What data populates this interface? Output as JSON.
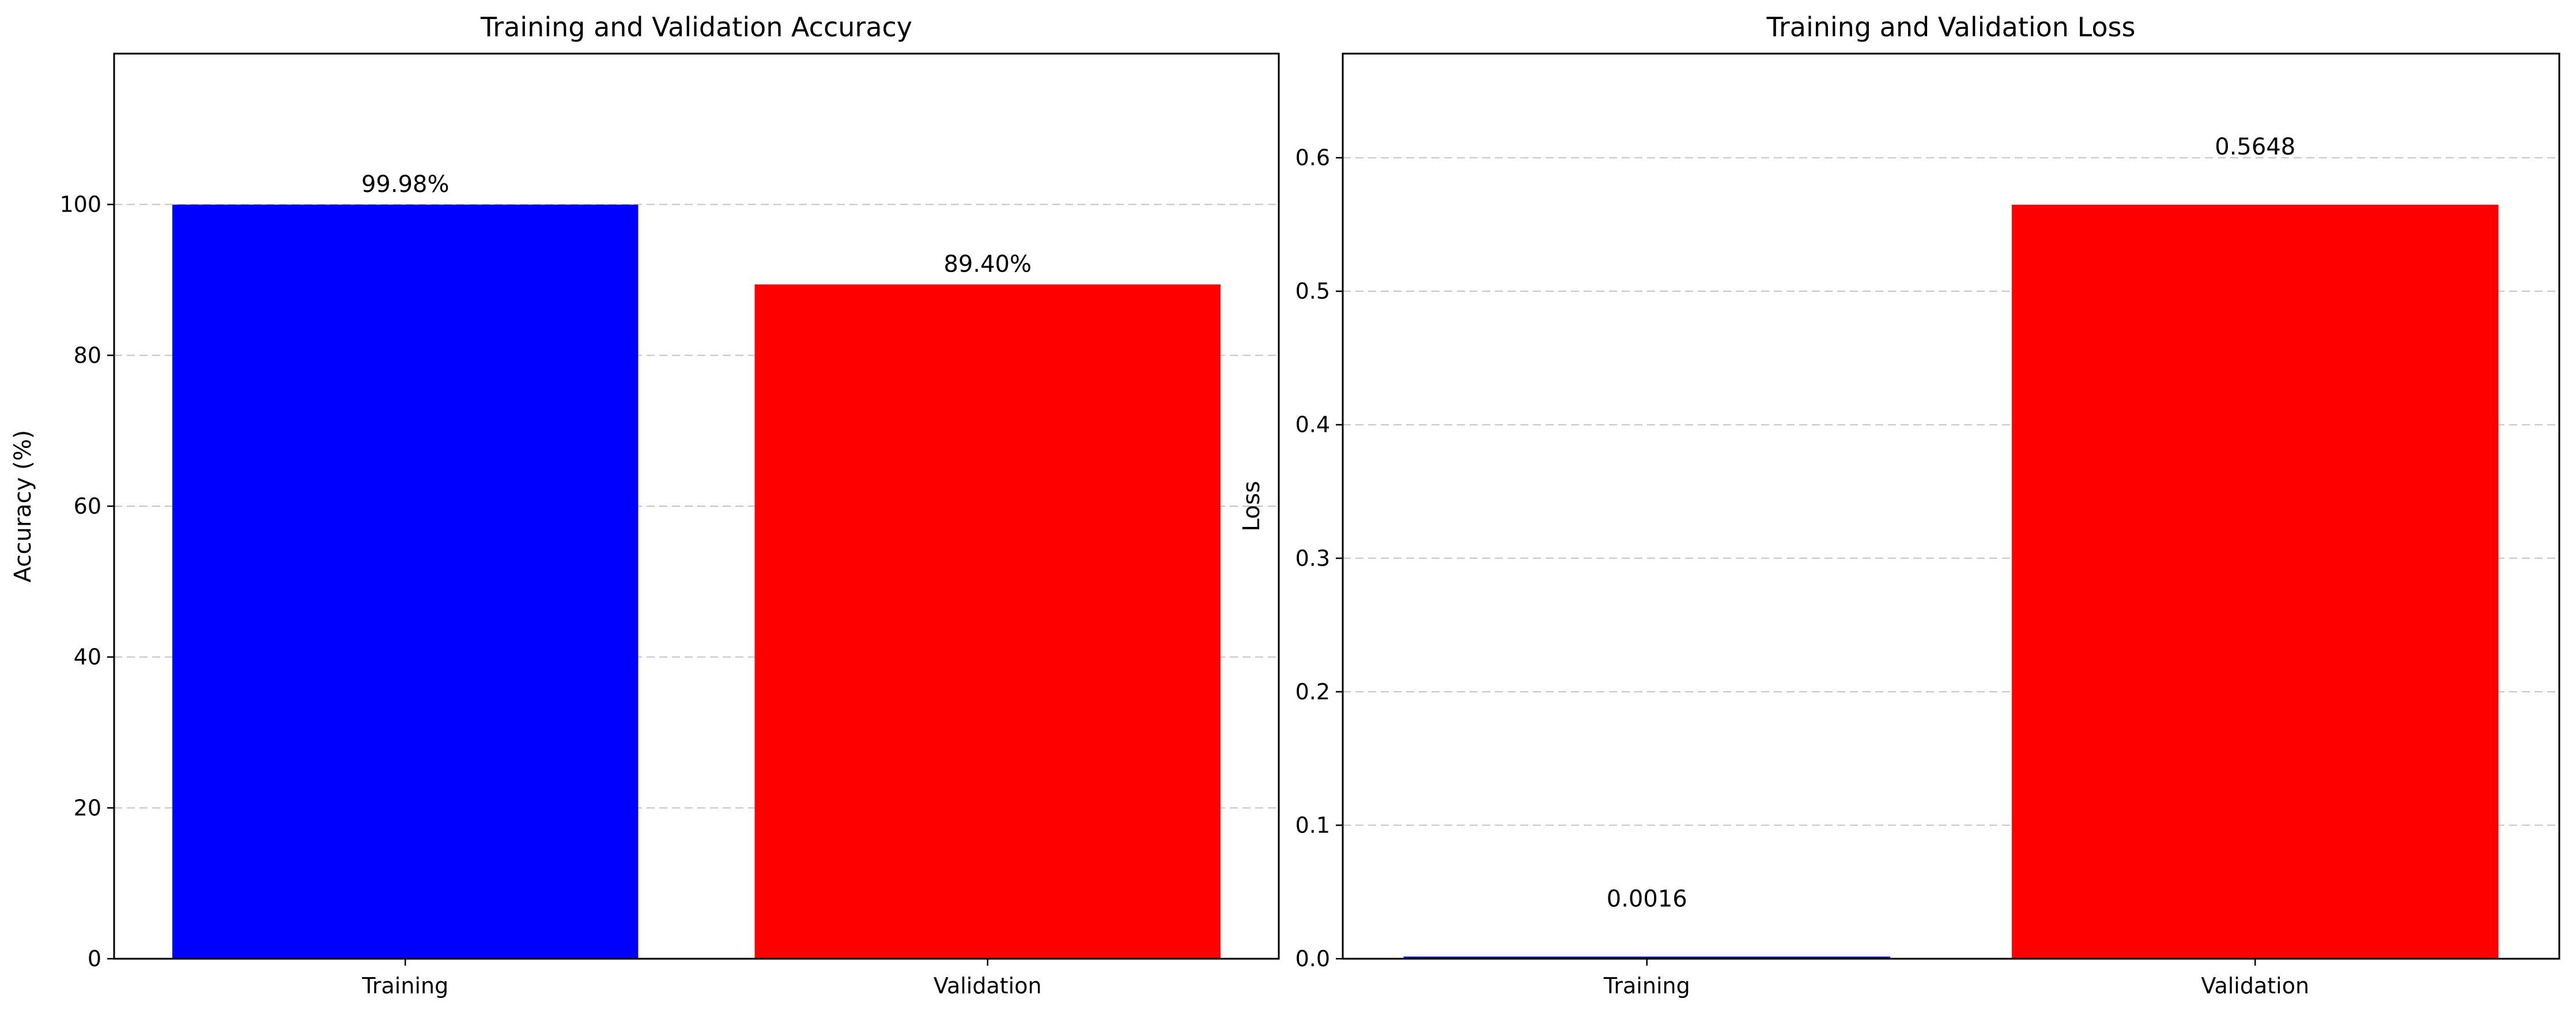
{
  "chart_data": [
    {
      "type": "bar",
      "title": "Training and Validation Accuracy",
      "xlabel": "",
      "ylabel": "Accuracy (%)",
      "categories": [
        "Training",
        "Validation"
      ],
      "values": [
        99.98,
        89.4
      ],
      "colors": [
        "#0000ff",
        "#ff0000"
      ],
      "data_labels": [
        "99.98%",
        "89.40%"
      ],
      "ylim": [
        0,
        120
      ],
      "yticks": [
        0,
        20,
        40,
        60,
        80,
        100
      ],
      "ytick_labels": [
        "0",
        "20",
        "40",
        "60",
        "80",
        "100"
      ],
      "grid": "y-dashed",
      "legend": "none"
    },
    {
      "type": "bar",
      "title": "Training and Validation Loss",
      "xlabel": "",
      "ylabel": "Loss",
      "categories": [
        "Training",
        "Validation"
      ],
      "values": [
        0.0016,
        0.5648
      ],
      "colors": [
        "#0000ff",
        "#ff0000"
      ],
      "data_labels": [
        "0.0016",
        "0.5648"
      ],
      "ylim": [
        0,
        0.678
      ],
      "yticks": [
        0,
        0.1,
        0.2,
        0.3,
        0.4,
        0.5,
        0.6
      ],
      "ytick_labels": [
        "0.0",
        "0.1",
        "0.2",
        "0.3",
        "0.4",
        "0.5",
        "0.6"
      ],
      "grid": "y-dashed",
      "legend": "none"
    }
  ]
}
